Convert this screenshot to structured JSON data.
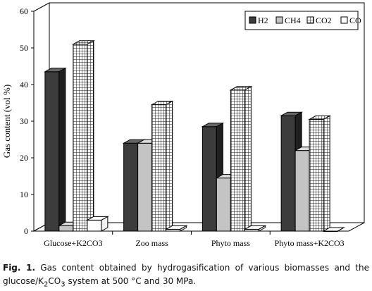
{
  "chart_data": {
    "type": "bar",
    "style": "3d-clustered",
    "ylabel": "Gas content (vol %)",
    "xlabel": "",
    "ylim": [
      0,
      60
    ],
    "yticks": [
      "0",
      "10",
      "20",
      "30",
      "40",
      "50",
      "60"
    ],
    "categories": [
      "Glucose+K2CO3",
      "Zoo mass",
      "Phyto mass",
      "Phyto mass+K2CO3"
    ],
    "series": [
      {
        "name": "H2",
        "values": [
          43.5,
          24,
          28.5,
          31.5
        ],
        "fill": "#3c3c3c",
        "pattern": "solid"
      },
      {
        "name": "CH4",
        "values": [
          1.5,
          24,
          14.5,
          22
        ],
        "fill": "#c4c4c4",
        "pattern": "solid"
      },
      {
        "name": "CO2",
        "values": [
          51,
          34.5,
          38.5,
          30.5
        ],
        "fill": "#ffffff",
        "pattern": "grid"
      },
      {
        "name": "CO",
        "values": [
          3,
          0.5,
          0.5,
          0
        ],
        "fill": "#ffffff",
        "pattern": "none"
      }
    ],
    "legend_placement": "top-right",
    "grid": false
  },
  "caption": {
    "label": "Fig. 1.",
    "text_before": " Gas content obtained by hydrogasification of various biomasses and the glucose/K",
    "subscript_1": "2",
    "text_middle": "CO",
    "subscript_2": "3",
    "text_after": " system at 500 °C and 30 MPa."
  }
}
